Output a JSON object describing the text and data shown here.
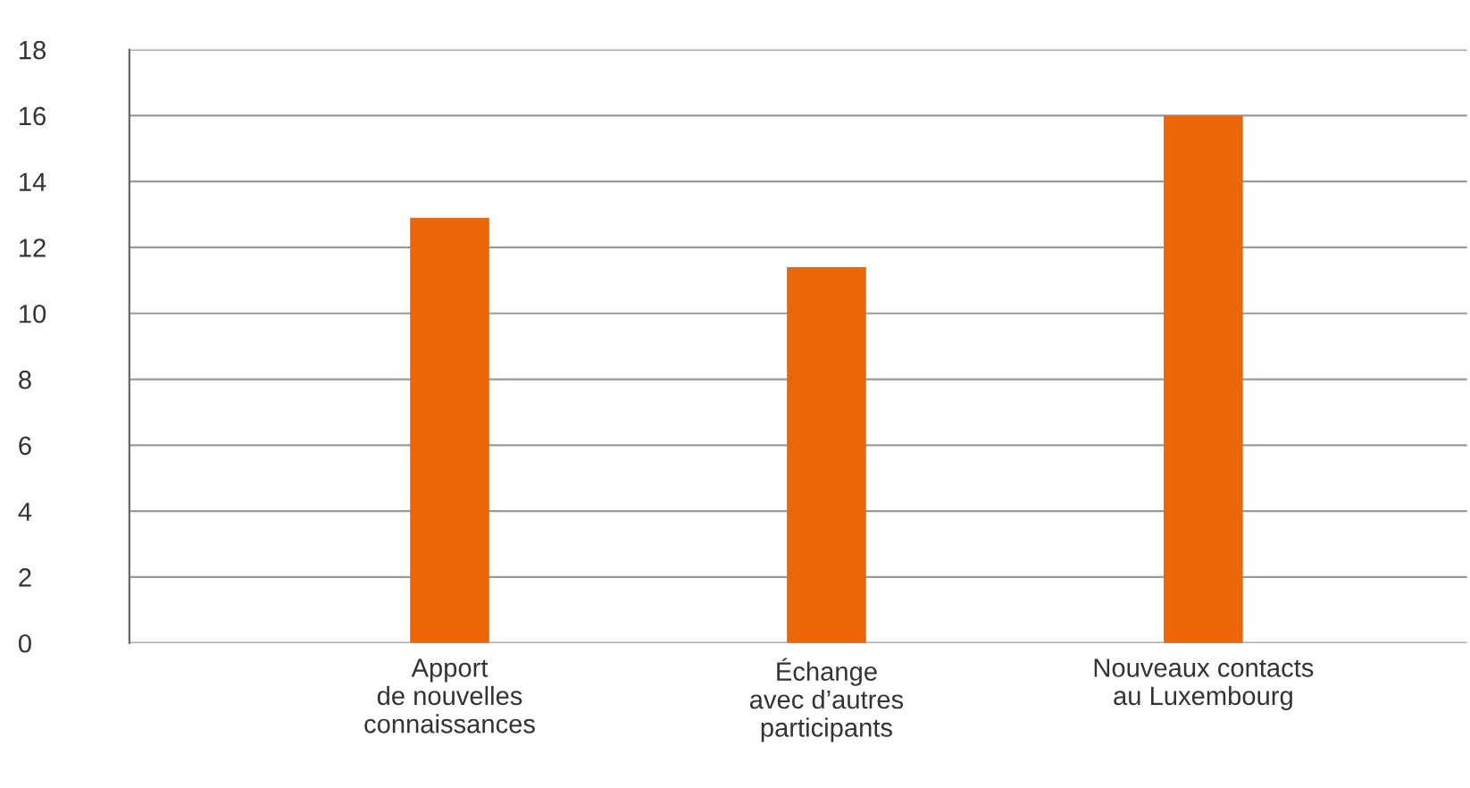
{
  "chart_data": {
    "type": "bar",
    "categories": [
      "Apport\nde nouvelles\nconnaissances",
      "Échange\navec d’autres\nparticipants",
      "Nouveaux contacts\nau Luxembourg"
    ],
    "values": [
      12.9,
      11.4,
      16.0
    ],
    "color": "#ec6608",
    "ylim": [
      0,
      18
    ],
    "yticks": [
      0,
      2,
      4,
      6,
      8,
      10,
      12,
      14,
      16,
      18
    ],
    "grid": "y",
    "legend": false
  }
}
